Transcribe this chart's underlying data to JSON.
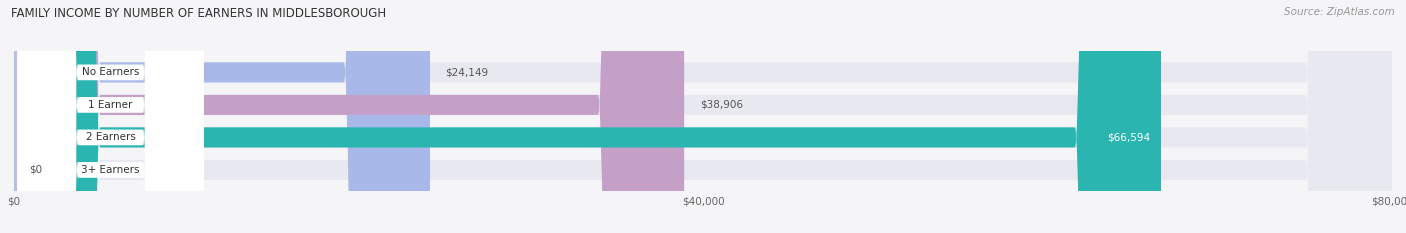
{
  "title": "FAMILY INCOME BY NUMBER OF EARNERS IN MIDDLESBOROUGH",
  "source": "Source: ZipAtlas.com",
  "categories": [
    "No Earners",
    "1 Earner",
    "2 Earners",
    "3+ Earners"
  ],
  "values": [
    24149,
    38906,
    66594,
    0
  ],
  "bar_colors": [
    "#a8b8e8",
    "#c4a0c8",
    "#2ab5b0",
    "#b8c0e8"
  ],
  "bar_bg_color": "#e8e8f0",
  "xlim": [
    0,
    80000
  ],
  "xtick_labels": [
    "$0",
    "$40,000",
    "$80,000"
  ],
  "value_labels": [
    "$24,149",
    "$38,906",
    "$66,594",
    "$0"
  ],
  "bar_height": 0.62,
  "figsize": [
    14.06,
    2.33
  ],
  "dpi": 100,
  "bg_color": "#f5f5f8"
}
